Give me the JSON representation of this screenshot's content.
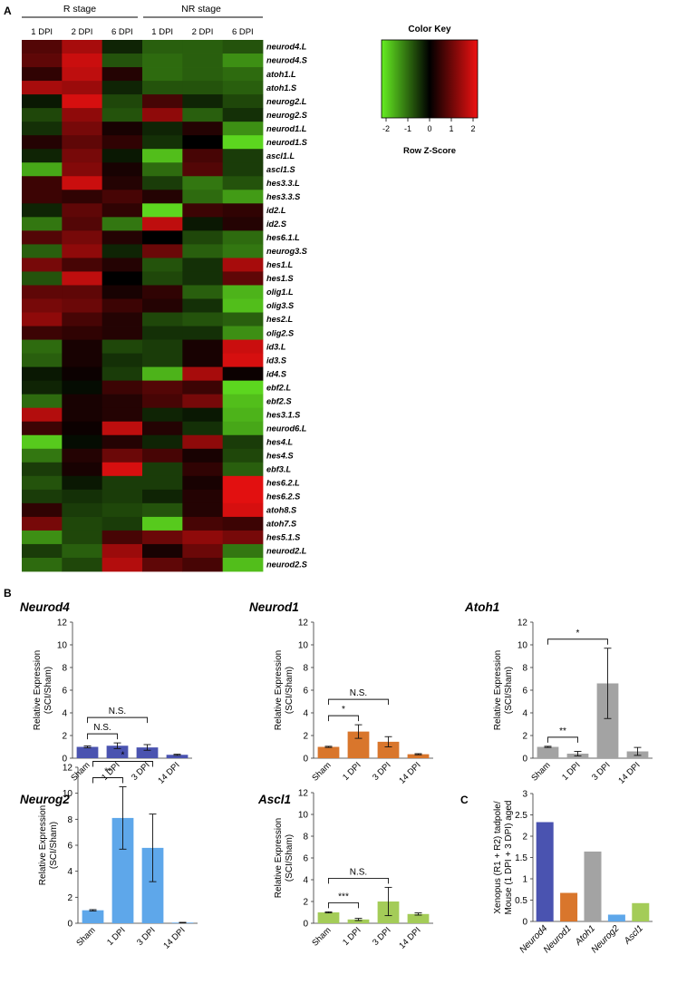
{
  "panel_labels": {
    "a": "A",
    "b": "B",
    "c": "C"
  },
  "heatmap": {
    "group_r": "R stage",
    "group_nr": "NR stage",
    "columns": [
      "1 DPI",
      "2 DPI",
      "6 DPI",
      "1 DPI",
      "2 DPI",
      "6 DPI"
    ],
    "genes": [
      "neurod4.L",
      "neurod4.S",
      "atoh1.L",
      "atoh1.S",
      "neurog2.L",
      "neurog2.S",
      "neurod1.L",
      "neurod1.S",
      "ascl1.L",
      "ascl1.S",
      "hes3.3.L",
      "hes3.3.S",
      "id2.L",
      "id2.S",
      "hes6.1.L",
      "neurog3.S",
      "hes1.L",
      "hes1.S",
      "olig1.L",
      "olig3.S",
      "hes2.L",
      "olig2.S",
      "id3.L",
      "id3.S",
      "id4.S",
      "ebf2.L",
      "ebf2.S",
      "hes3.1.S",
      "neurod6.L",
      "hes4.L",
      "hes4.S",
      "ebf3.L",
      "hes6.2.L",
      "hes6.2.S",
      "atoh8.S",
      "atoh7.S",
      "hes5.1.S",
      "neurod2.L",
      "neurod2.S"
    ],
    "z": [
      [
        0.7,
        1.4,
        -0.3,
        -0.8,
        -0.8,
        -0.7
      ],
      [
        0.8,
        1.7,
        -0.7,
        -0.9,
        -0.8,
        -1.2
      ],
      [
        0.4,
        1.6,
        0.3,
        -0.9,
        -0.8,
        -0.9
      ],
      [
        1.4,
        1.3,
        -0.3,
        -0.7,
        -0.7,
        -0.8
      ],
      [
        -0.2,
        1.8,
        -0.6,
        0.6,
        -0.3,
        -0.6
      ],
      [
        -0.6,
        1.2,
        -0.7,
        1.2,
        -0.8,
        -0.4
      ],
      [
        -0.4,
        1.0,
        0.2,
        -0.3,
        0.3,
        -1.2
      ],
      [
        0.3,
        0.8,
        0.4,
        -0.4,
        0.0,
        -1.8
      ],
      [
        -0.3,
        1.0,
        -0.2,
        -1.6,
        0.6,
        -0.5
      ],
      [
        -1.4,
        1.1,
        0.2,
        -0.9,
        0.7,
        -0.5
      ],
      [
        0.5,
        1.7,
        0.3,
        -0.5,
        -1.0,
        -0.7
      ],
      [
        0.5,
        0.4,
        0.6,
        0.3,
        -0.9,
        -1.3
      ],
      [
        -0.3,
        0.8,
        0.4,
        -1.8,
        0.5,
        0.4
      ],
      [
        -1.0,
        0.7,
        -1.0,
        1.6,
        -0.2,
        0.3
      ],
      [
        0.7,
        1.0,
        0.3,
        0.0,
        -0.6,
        -0.9
      ],
      [
        -0.8,
        1.2,
        -0.3,
        0.9,
        -0.8,
        -1.0
      ],
      [
        1.0,
        0.6,
        0.3,
        -0.7,
        -0.4,
        1.4
      ],
      [
        -0.7,
        1.6,
        0.0,
        -0.6,
        -0.4,
        0.8
      ],
      [
        0.8,
        0.8,
        0.2,
        0.4,
        -0.8,
        -1.5
      ],
      [
        1.0,
        0.9,
        0.5,
        0.3,
        -0.4,
        -1.6
      ],
      [
        1.2,
        0.6,
        0.3,
        -0.6,
        -0.7,
        -0.8
      ],
      [
        0.5,
        0.4,
        0.3,
        -0.4,
        -0.4,
        -1.2
      ],
      [
        -0.9,
        0.2,
        -0.6,
        -0.5,
        0.2,
        1.7
      ],
      [
        -0.8,
        0.2,
        -0.4,
        -0.5,
        0.2,
        1.8
      ],
      [
        -0.2,
        0.1,
        -0.5,
        -1.5,
        1.4,
        0.1
      ],
      [
        -0.3,
        -0.1,
        0.5,
        0.7,
        0.5,
        -1.8
      ],
      [
        -0.9,
        0.2,
        0.3,
        0.6,
        1.0,
        -1.6
      ],
      [
        1.5,
        0.2,
        0.3,
        -0.3,
        -0.2,
        -1.5
      ],
      [
        0.5,
        0.1,
        1.6,
        0.3,
        -0.4,
        -1.4
      ],
      [
        -1.7,
        -0.1,
        0.3,
        -0.3,
        1.2,
        -0.5
      ],
      [
        -1.0,
        0.3,
        0.9,
        0.6,
        0.2,
        -0.6
      ],
      [
        -0.5,
        0.2,
        1.8,
        -0.5,
        0.4,
        -0.8
      ],
      [
        -0.7,
        -0.2,
        -0.5,
        -0.5,
        0.2,
        1.9
      ],
      [
        -0.5,
        -0.4,
        -0.5,
        -0.3,
        0.3,
        1.9
      ],
      [
        0.4,
        -0.5,
        -0.6,
        -0.7,
        0.3,
        1.8
      ],
      [
        1.0,
        -0.6,
        -0.5,
        -1.7,
        0.6,
        0.5
      ],
      [
        -1.2,
        -0.6,
        0.6,
        0.9,
        1.2,
        1.0
      ],
      [
        -0.5,
        -0.8,
        1.3,
        0.2,
        0.9,
        -1.0
      ],
      [
        -0.9,
        -0.6,
        1.5,
        0.8,
        0.6,
        -1.6
      ]
    ]
  },
  "color_key": {
    "title": "Color Key",
    "xlabel": "Row Z-Score",
    "ticks": [
      "-2",
      "-1",
      "0",
      "1",
      "2"
    ],
    "low_color": "#66ee22",
    "mid_color": "#000000",
    "high_color": "#ee1111"
  },
  "chart_data": [
    {
      "type": "bar",
      "title": "Neurod4",
      "ylabel": "Relative Expression (SCI/Sham)",
      "categories": [
        "Sham",
        "1 DPI",
        "3 DPI",
        "14 DPI"
      ],
      "values": [
        1.0,
        1.1,
        0.95,
        0.3
      ],
      "errors": [
        0.08,
        0.25,
        0.25,
        0.05
      ],
      "ylim": [
        0,
        12
      ],
      "yticks": [
        "0",
        "2",
        "4",
        "6",
        "8",
        "10",
        "12"
      ],
      "color": "#4a53b0",
      "annotations": [
        {
          "from": 0,
          "to": 1,
          "label": "N.S."
        },
        {
          "from": 0,
          "to": 2,
          "label": "N.S."
        }
      ]
    },
    {
      "type": "bar",
      "title": "Neurod1",
      "ylabel": "Relative Expression (SCI/Sham)",
      "categories": [
        "Sham",
        "1 DPI",
        "3 DPI",
        "14 DPI"
      ],
      "values": [
        1.0,
        2.35,
        1.45,
        0.35
      ],
      "errors": [
        0.05,
        0.6,
        0.45,
        0.05
      ],
      "ylim": [
        0,
        12
      ],
      "yticks": [
        "0",
        "2",
        "4",
        "6",
        "8",
        "10",
        "12"
      ],
      "color": "#d9762c",
      "annotations": [
        {
          "from": 0,
          "to": 1,
          "label": "*"
        },
        {
          "from": 0,
          "to": 2,
          "label": "N.S."
        }
      ]
    },
    {
      "type": "bar",
      "title": "Atoh1",
      "ylabel": "Relative Expression (SCI/Sham)",
      "categories": [
        "Sham",
        "1 DPI",
        "3 DPI",
        "14 DPI"
      ],
      "values": [
        1.0,
        0.4,
        6.6,
        0.6
      ],
      "errors": [
        0.05,
        0.2,
        3.1,
        0.35
      ],
      "ylim": [
        0,
        12
      ],
      "yticks": [
        "0",
        "2",
        "4",
        "6",
        "8",
        "10",
        "12"
      ],
      "color": "#a3a3a3",
      "annotations": [
        {
          "from": 0,
          "to": 1,
          "label": "**"
        },
        {
          "from": 0,
          "to": 2,
          "label": "*"
        }
      ]
    },
    {
      "type": "bar",
      "title": "Neurog2",
      "ylabel": "Relative Expression (SCI/Sham)",
      "categories": [
        "Sham",
        "1 DPI",
        "3 DPI",
        "14 DPI"
      ],
      "values": [
        1.0,
        8.1,
        5.8,
        0.05
      ],
      "errors": [
        0.05,
        2.4,
        2.6,
        0.02
      ],
      "ylim": [
        0,
        12
      ],
      "yticks": [
        "0",
        "2",
        "4",
        "6",
        "8",
        "10",
        "12"
      ],
      "color": "#5ea7ea",
      "annotations": [
        {
          "from": 0,
          "to": 1,
          "label": "**"
        },
        {
          "from": 0,
          "to": 2,
          "label": "*"
        }
      ]
    },
    {
      "type": "bar",
      "title": "Ascl1",
      "ylabel": "Relative Expression (SCI/Sham)",
      "categories": [
        "Sham",
        "1 DPI",
        "3 DPI",
        "14 DPI"
      ],
      "values": [
        1.0,
        0.35,
        2.0,
        0.85
      ],
      "errors": [
        0.05,
        0.1,
        1.3,
        0.1
      ],
      "ylim": [
        0,
        12
      ],
      "yticks": [
        "0",
        "2",
        "4",
        "6",
        "8",
        "10",
        "12"
      ],
      "color": "#a4cc58",
      "annotations": [
        {
          "from": 0,
          "to": 1,
          "label": "***"
        },
        {
          "from": 0,
          "to": 2,
          "label": "N.S."
        }
      ]
    },
    {
      "type": "bar",
      "title": "",
      "ylabel": "Xenopus (R1 + R2) tadpole/ Mouse (1 DPI + 3 DPI) aged",
      "categories": [
        "Neurod4",
        "Neurod1",
        "Atoh1",
        "Neurog2",
        "Ascl1"
      ],
      "values": [
        2.33,
        0.67,
        1.64,
        0.16,
        0.43
      ],
      "colors": [
        "#4a53b0",
        "#d9762c",
        "#a3a3a3",
        "#5ea7ea",
        "#a4cc58"
      ],
      "ylim": [
        0,
        3
      ],
      "yticks": [
        "0",
        "0.5",
        "1",
        "1.5",
        "2",
        "2.5",
        "3"
      ]
    }
  ]
}
